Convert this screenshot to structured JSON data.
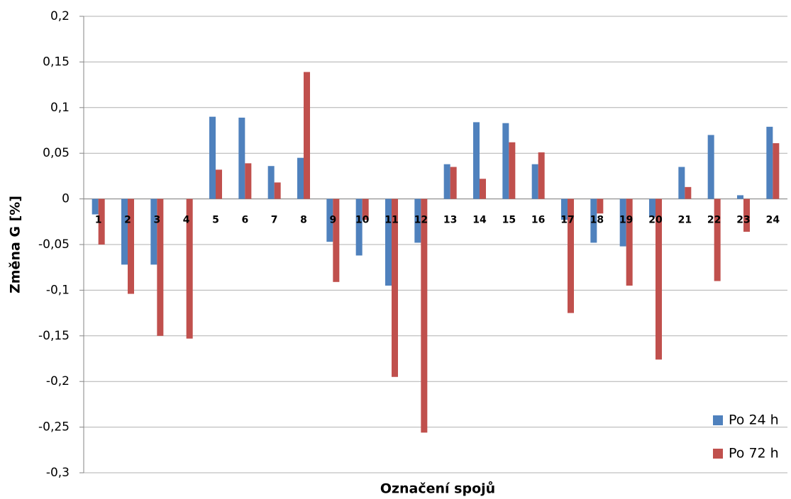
{
  "chart_data": {
    "type": "bar",
    "x_label": "Označení spojů",
    "y_label": "Změna G [%]",
    "categories": [
      "1",
      "2",
      "3",
      "4",
      "5",
      "6",
      "7",
      "8",
      "9",
      "10",
      "11",
      "12",
      "13",
      "14",
      "15",
      "16",
      "17",
      "18",
      "19",
      "20",
      "21",
      "22",
      "23",
      "24"
    ],
    "series": [
      {
        "name": "Po 24 h",
        "color": "#4f81bd",
        "values": [
          -0.017,
          -0.072,
          -0.072,
          0,
          0.09,
          0.089,
          0.036,
          0.045,
          -0.047,
          -0.062,
          -0.095,
          -0.048,
          0.038,
          0.084,
          0.083,
          0.038,
          -0.023,
          -0.048,
          -0.052,
          -0.02,
          0.035,
          0.07,
          0.004,
          0.079
        ]
      },
      {
        "name": "Po 72 h",
        "color": "#c0504d",
        "values": [
          -0.05,
          -0.104,
          -0.15,
          -0.153,
          0.032,
          0.039,
          0.018,
          0.139,
          -0.091,
          -0.023,
          -0.195,
          -0.256,
          0.035,
          0.022,
          0.062,
          0.051,
          -0.125,
          -0.016,
          -0.095,
          -0.176,
          0.013,
          -0.09,
          -0.036,
          0.061
        ]
      }
    ],
    "ylim": [
      -0.3,
      0.2
    ],
    "yticks": [
      {
        "value": -0.3,
        "label": "-0,3"
      },
      {
        "value": -0.25,
        "label": "-0,25"
      },
      {
        "value": -0.2,
        "label": "-0,2"
      },
      {
        "value": -0.15,
        "label": "-0,15"
      },
      {
        "value": -0.1,
        "label": "-0,1"
      },
      {
        "value": -0.05,
        "label": "-0,05"
      },
      0,
      {
        "value": 0.05,
        "label": "0,05"
      },
      {
        "value": 0.1,
        "label": "0,1"
      },
      {
        "value": 0.15,
        "label": "0,15"
      },
      {
        "value": 0.2,
        "label": "0,2"
      }
    ],
    "grid": true,
    "legend": "lower right"
  }
}
